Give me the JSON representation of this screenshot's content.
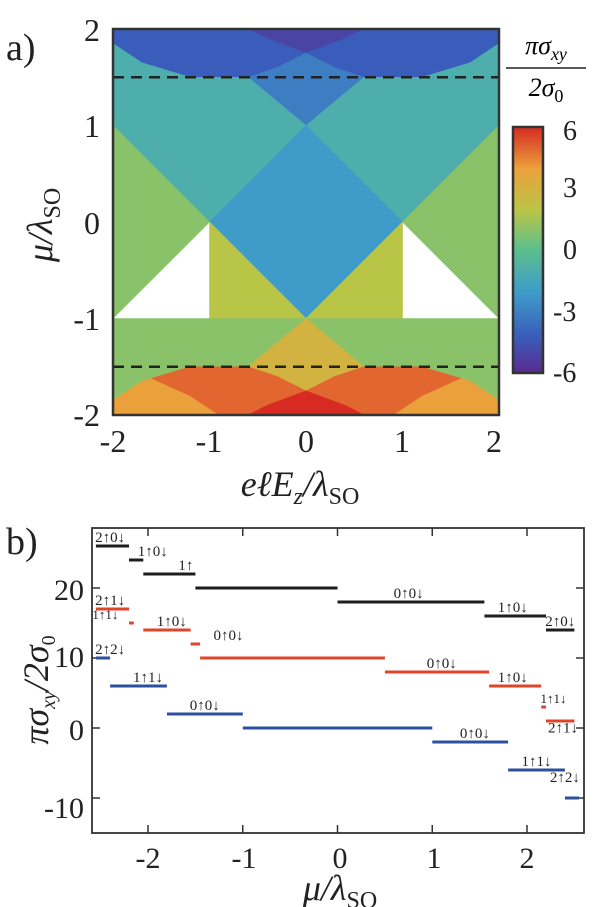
{
  "chart_data": [
    {
      "type": "heatmap",
      "panel_label": "a)",
      "title": "",
      "xlabel": "eℓE_z/λ_SO",
      "ylabel": "μ/λ_SO",
      "xlim": [
        -2,
        2
      ],
      "ylim": [
        -2,
        2
      ],
      "xticks": [
        "-2",
        "-1",
        "0",
        "1",
        "2"
      ],
      "yticks": [
        "2",
        "1",
        "0",
        "-1",
        "-2"
      ],
      "colorbar": {
        "label": "πσ_xy / 2σ_0",
        "ticks": [
          "6",
          "3",
          "0",
          "-3",
          "-6"
        ],
        "range": [
          -6,
          6
        ]
      },
      "dashed_lines_mu": [
        1.5,
        -1.5
      ],
      "regions": [
        {
          "value": -5,
          "points": [
            [
              -0.6,
              2
            ],
            [
              0.6,
              2
            ],
            [
              0.4,
              1.9
            ],
            [
              0,
              1.75
            ],
            [
              -0.4,
              1.9
            ]
          ]
        },
        {
          "value": -4,
          "points": [
            [
              -2,
              2
            ],
            [
              -0.6,
              2
            ],
            [
              -0.4,
              1.9
            ],
            [
              0,
              1.75
            ],
            [
              -0.3,
              1.6
            ],
            [
              -0.6,
              1.5
            ],
            [
              -1.2,
              1.5
            ],
            [
              -1.7,
              1.65
            ],
            [
              -2,
              1.85
            ]
          ]
        },
        {
          "value": -4,
          "points": [
            [
              2,
              2
            ],
            [
              0.6,
              2
            ],
            [
              0.4,
              1.9
            ],
            [
              0,
              1.75
            ],
            [
              0.3,
              1.6
            ],
            [
              0.6,
              1.5
            ],
            [
              1.2,
              1.5
            ],
            [
              1.7,
              1.65
            ],
            [
              2,
              1.85
            ]
          ]
        },
        {
          "value": -3,
          "points": [
            [
              0,
              1.75
            ],
            [
              0.3,
              1.6
            ],
            [
              0.6,
              1.5
            ],
            [
              0,
              1
            ],
            [
              -0.6,
              1.5
            ],
            [
              -0.3,
              1.6
            ]
          ]
        },
        {
          "value": -1,
          "points": [
            [
              -2,
              1.85
            ],
            [
              -1.7,
              1.65
            ],
            [
              -1.2,
              1.5
            ],
            [
              -0.6,
              1.5
            ],
            [
              0,
              1
            ],
            [
              0.6,
              1.5
            ],
            [
              1.2,
              1.5
            ],
            [
              1.7,
              1.65
            ],
            [
              2,
              1.85
            ],
            [
              2,
              1
            ],
            [
              1,
              0
            ],
            [
              0,
              -1
            ],
            [
              -1,
              0
            ],
            [
              -2,
              1
            ]
          ]
        },
        {
          "value": -2,
          "points": [
            [
              0,
              1
            ],
            [
              1,
              0
            ],
            [
              0,
              -1
            ],
            [
              -1,
              0
            ]
          ]
        },
        {
          "value": 1,
          "points": [
            [
              -2,
              1
            ],
            [
              -1,
              0
            ],
            [
              -2,
              -1
            ]
          ]
        },
        {
          "value": 1,
          "points": [
            [
              2,
              1
            ],
            [
              1,
              0
            ],
            [
              2,
              -1
            ]
          ]
        },
        {
          "value": 2,
          "points": [
            [
              -1,
              0
            ],
            [
              0,
              -1
            ],
            [
              -1,
              -1
            ]
          ]
        },
        {
          "value": 2,
          "points": [
            [
              1,
              0
            ],
            [
              0,
              -1
            ],
            [
              1,
              -1
            ]
          ]
        },
        {
          "value": 1,
          "points": [
            [
              -2,
              -1
            ],
            [
              -1,
              -1
            ],
            [
              0,
              -1
            ],
            [
              1,
              -1
            ],
            [
              2,
              -1
            ],
            [
              2,
              -1.85
            ],
            [
              1.7,
              -1.65
            ],
            [
              1.2,
              -1.5
            ],
            [
              0.6,
              -1.5
            ],
            [
              0,
              -1
            ],
            [
              -0.6,
              -1.5
            ],
            [
              -1.2,
              -1.5
            ],
            [
              -1.7,
              -1.65
            ],
            [
              -2,
              -1.85
            ]
          ]
        },
        {
          "value": 3,
          "points": [
            [
              0,
              -1
            ],
            [
              0.6,
              -1.5
            ],
            [
              0.3,
              -1.6
            ],
            [
              0,
              -1.75
            ],
            [
              -0.3,
              -1.6
            ],
            [
              -0.6,
              -1.5
            ]
          ]
        },
        {
          "value": 4,
          "points": [
            [
              -2,
              -1.85
            ],
            [
              -1.7,
              -1.65
            ],
            [
              -1.2,
              -1.5
            ],
            [
              -0.6,
              -1.5
            ],
            [
              -0.3,
              -1.6
            ],
            [
              0,
              -1.75
            ],
            [
              -0.4,
              -1.9
            ],
            [
              -0.6,
              -2
            ],
            [
              -2,
              -2
            ]
          ]
        },
        {
          "value": 4,
          "points": [
            [
              2,
              -1.85
            ],
            [
              1.7,
              -1.65
            ],
            [
              1.2,
              -1.5
            ],
            [
              0.6,
              -1.5
            ],
            [
              0.3,
              -1.6
            ],
            [
              0,
              -1.75
            ],
            [
              0.4,
              -1.9
            ],
            [
              0.6,
              -2
            ],
            [
              2,
              -2
            ]
          ]
        },
        {
          "value": 5,
          "points": [
            [
              -0.6,
              -2
            ],
            [
              -0.4,
              -1.9
            ],
            [
              0,
              -1.75
            ],
            [
              -0.3,
              -1.6
            ],
            [
              -0.6,
              -1.5
            ],
            [
              -1.2,
              -1.5
            ],
            [
              -1.6,
              -1.62
            ],
            [
              -1.2,
              -1.8
            ],
            [
              -0.9,
              -2
            ]
          ]
        },
        {
          "value": 5,
          "points": [
            [
              0.6,
              -2
            ],
            [
              0.4,
              -1.9
            ],
            [
              0,
              -1.75
            ],
            [
              0.3,
              -1.6
            ],
            [
              0.6,
              -1.5
            ],
            [
              1.2,
              -1.5
            ],
            [
              1.6,
              -1.62
            ],
            [
              1.2,
              -1.8
            ],
            [
              0.9,
              -2
            ]
          ]
        },
        {
          "value": 6,
          "points": [
            [
              -0.6,
              -2
            ],
            [
              0.6,
              -2
            ],
            [
              0.4,
              -1.9
            ],
            [
              0,
              -1.75
            ],
            [
              -0.4,
              -1.9
            ]
          ]
        }
      ]
    },
    {
      "type": "line",
      "panel_label": "b)",
      "title": "",
      "xlabel": "μ/λ_SO",
      "ylabel": "πσ_xy/2σ_0",
      "xlim": [
        -2.6,
        2.6
      ],
      "ylim": [
        -11,
        28
      ],
      "xticks": [
        "-2",
        "-1",
        "0",
        "1",
        "2"
      ],
      "yticks": [
        "20",
        "10",
        "0",
        "-10"
      ],
      "ytick_values": [
        20,
        10,
        0,
        -10
      ],
      "xtick_values": [
        -2,
        -1,
        0,
        1,
        2
      ],
      "series": [
        {
          "color": "#1e1e1e",
          "segments": [
            {
              "x": [
                -2.55,
                -2.2
              ],
              "y": 26
            },
            {
              "x": [
                -2.2,
                -2.05
              ],
              "y": 24
            },
            {
              "x": [
                -2.05,
                -1.5
              ],
              "y": 22
            },
            {
              "x": [
                -1.5,
                0.0
              ],
              "y": 20
            },
            {
              "x": [
                0.0,
                1.55
              ],
              "y": 18
            },
            {
              "x": [
                1.55,
                2.2
              ],
              "y": 16
            },
            {
              "x": [
                2.2,
                2.5
              ],
              "y": 14
            }
          ]
        },
        {
          "color": "#e0442a",
          "segments": [
            {
              "x": [
                -2.55,
                -2.2
              ],
              "y": 17
            },
            {
              "x": [
                -2.2,
                -2.15
              ],
              "y": 15
            },
            {
              "x": [
                -2.05,
                -1.55
              ],
              "y": 14
            },
            {
              "x": [
                -1.55,
                -1.45
              ],
              "y": 12
            },
            {
              "x": [
                -1.45,
                0.5
              ],
              "y": 10
            },
            {
              "x": [
                0.5,
                1.6
              ],
              "y": 8
            },
            {
              "x": [
                1.6,
                2.15
              ],
              "y": 6
            },
            {
              "x": [
                2.15,
                2.2
              ],
              "y": 3
            },
            {
              "x": [
                2.2,
                2.5
              ],
              "y": 1
            }
          ]
        },
        {
          "color": "#2c4f9e",
          "segments": [
            {
              "x": [
                -2.55,
                -2.4
              ],
              "y": 10
            },
            {
              "x": [
                -2.4,
                -1.8
              ],
              "y": 6
            },
            {
              "x": [
                -1.8,
                -1.0
              ],
              "y": 2
            },
            {
              "x": [
                -1.0,
                1.0
              ],
              "y": 0
            },
            {
              "x": [
                1.0,
                1.8
              ],
              "y": -2
            },
            {
              "x": [
                1.8,
                2.4
              ],
              "y": -6
            },
            {
              "x": [
                2.4,
                2.55
              ],
              "y": -10
            }
          ]
        }
      ],
      "annotations": [
        {
          "text": "2↑0↓",
          "x": -2.4,
          "y": 26,
          "size": 15
        },
        {
          "text": "1↑0↓",
          "x": -1.95,
          "y": 24,
          "size": 15
        },
        {
          "text": "1↑",
          "x": -1.6,
          "y": 22,
          "size": 15
        },
        {
          "text": "0↑0↓",
          "x": 0.75,
          "y": 18,
          "size": 15
        },
        {
          "text": "1↑0↓",
          "x": 1.85,
          "y": 16,
          "size": 15
        },
        {
          "text": "2↑0↓",
          "x": 2.35,
          "y": 14,
          "size": 15
        },
        {
          "text": "2↑1↓",
          "x": -2.4,
          "y": 17,
          "size": 15
        },
        {
          "text": "1↑1↓",
          "x": -2.45,
          "y": 15,
          "size": 13
        },
        {
          "text": "1↑0↓",
          "x": -1.75,
          "y": 14,
          "size": 15
        },
        {
          "text": "0↑0↓",
          "x": -1.15,
          "y": 12,
          "size": 15
        },
        {
          "text": "0↑0↓",
          "x": 1.1,
          "y": 8,
          "size": 15
        },
        {
          "text": "1↑0↓",
          "x": 1.85,
          "y": 6,
          "size": 15
        },
        {
          "text": "1↑1↓",
          "x": 2.28,
          "y": 3,
          "size": 13
        },
        {
          "text": "2↑1↓",
          "x": 2.38,
          "y": -1.2,
          "size": 15
        },
        {
          "text": "2↑2↓",
          "x": -2.4,
          "y": 10,
          "size": 15
        },
        {
          "text": "1↑1↓",
          "x": -2.0,
          "y": 6,
          "size": 15
        },
        {
          "text": "0↑0↓",
          "x": -1.4,
          "y": 2,
          "size": 15
        },
        {
          "text": "0↑0↓",
          "x": 1.45,
          "y": -2,
          "size": 15
        },
        {
          "text": "1↑1↓",
          "x": 2.1,
          "y": -6,
          "size": 15
        },
        {
          "text": "2↑2↓",
          "x": 2.4,
          "y": -8.3,
          "size": 15
        }
      ]
    }
  ]
}
